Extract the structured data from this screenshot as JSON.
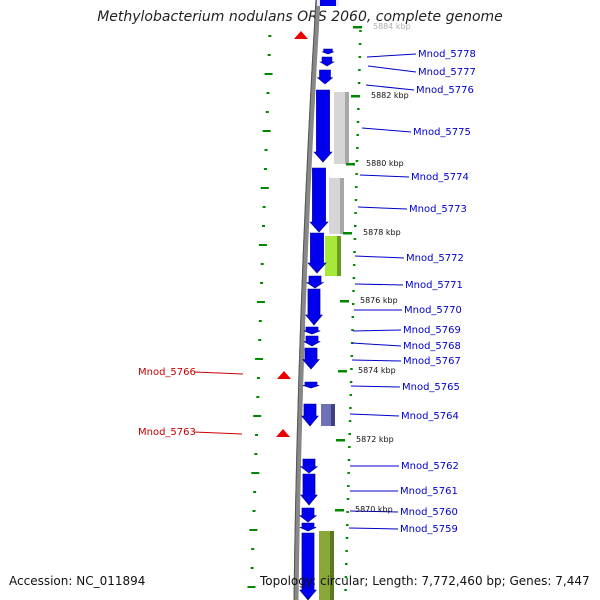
{
  "title": "Methylobacterium nodulans ORS 2060, complete genome",
  "footer": {
    "accession": "Accession: NC_011894",
    "summary": "Topology: circular; Length: 7,772,460 bp; Genes: 7,447"
  },
  "colors": {
    "gene_forward": "#0000ee",
    "gene_reverse_marker": "#ee0000",
    "label_forward": "#0000cc",
    "label_reverse": "#cc0000",
    "kbp_tick": "#008800",
    "backbone": "#888888"
  },
  "scale_labels": [
    {
      "text": "5884 kbp"
    },
    {
      "text": "5882 kbp"
    },
    {
      "text": "5880 kbp"
    },
    {
      "text": "5878 kbp"
    },
    {
      "text": "5876 kbp"
    },
    {
      "text": "5874 kbp"
    },
    {
      "text": "5872 kbp"
    },
    {
      "text": "5870 kbp"
    }
  ],
  "genes_forward": [
    {
      "label": "Mnod_5778"
    },
    {
      "label": "Mnod_5777"
    },
    {
      "label": "Mnod_5776"
    },
    {
      "label": "Mnod_5775"
    },
    {
      "label": "Mnod_5774"
    },
    {
      "label": "Mnod_5773"
    },
    {
      "label": "Mnod_5772"
    },
    {
      "label": "Mnod_5771"
    },
    {
      "label": "Mnod_5770"
    },
    {
      "label": "Mnod_5769"
    },
    {
      "label": "Mnod_5768"
    },
    {
      "label": "Mnod_5767"
    },
    {
      "label": "Mnod_5765"
    },
    {
      "label": "Mnod_5764"
    },
    {
      "label": "Mnod_5762"
    },
    {
      "label": "Mnod_5761"
    },
    {
      "label": "Mnod_5760"
    },
    {
      "label": "Mnod_5759"
    }
  ],
  "genes_reverse": [
    {
      "label": "Mnod_5766"
    },
    {
      "label": "Mnod_5763"
    }
  ]
}
